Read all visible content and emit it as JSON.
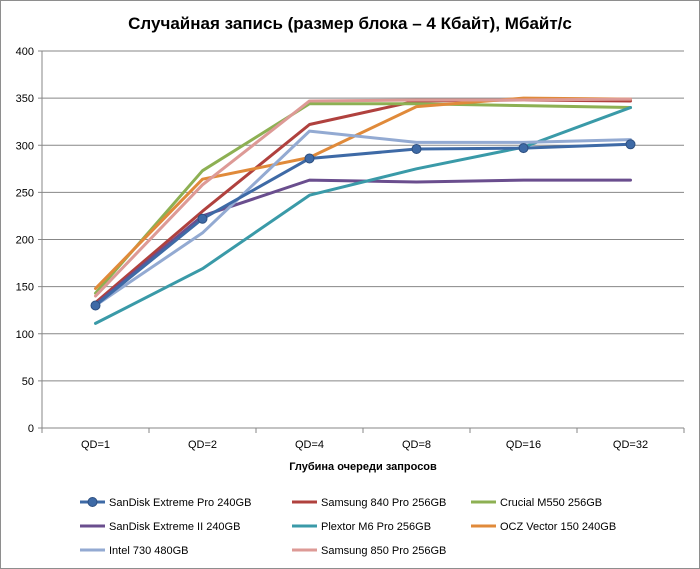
{
  "chart_data": {
    "type": "line",
    "title": "Случайная запись (размер блока – 4 Кбайт), Мбайт/с",
    "xlabel": "Глубина очереди запросов",
    "ylabel": "",
    "categories": [
      "QD=1",
      "QD=2",
      "QD=4",
      "QD=8",
      "QD=16",
      "QD=32"
    ],
    "ylim": [
      0,
      400
    ],
    "yticks": [
      0,
      50,
      100,
      150,
      200,
      250,
      300,
      350,
      400
    ],
    "grid": "horizontal",
    "legend_position": "bottom",
    "series": [
      {
        "name": "SanDisk Extreme Pro 240GB",
        "color": "#3e6aa6",
        "marker": "circle",
        "values": [
          130,
          222,
          286,
          296,
          297,
          301
        ]
      },
      {
        "name": "Samsung 840 Pro 256GB",
        "color": "#b0413e",
        "marker": "none",
        "values": [
          133,
          230,
          322,
          347,
          348,
          347
        ]
      },
      {
        "name": "Crucial M550 256GB",
        "color": "#8db053",
        "marker": "none",
        "values": [
          143,
          273,
          344,
          344,
          342,
          340
        ]
      },
      {
        "name": "SanDisk Extreme II 240GB",
        "color": "#6a4e8e",
        "marker": "none",
        "values": [
          131,
          225,
          263,
          261,
          263,
          263
        ]
      },
      {
        "name": "Plextor M6 Pro 256GB",
        "color": "#3a9aa8",
        "marker": "none",
        "values": [
          111,
          169,
          247,
          275,
          298,
          340
        ]
      },
      {
        "name": "OCZ Vector 150 240GB",
        "color": "#e08a3a",
        "marker": "none",
        "values": [
          148,
          264,
          287,
          341,
          350,
          349
        ]
      },
      {
        "name": "Intel 730 480GB",
        "color": "#93aad2",
        "marker": "none",
        "values": [
          130,
          207,
          315,
          303,
          303,
          306
        ]
      },
      {
        "name": "Samsung 850 Pro 256GB",
        "color": "#dd9a96",
        "marker": "none",
        "values": [
          140,
          258,
          347,
          348,
          348,
          349
        ]
      }
    ]
  }
}
